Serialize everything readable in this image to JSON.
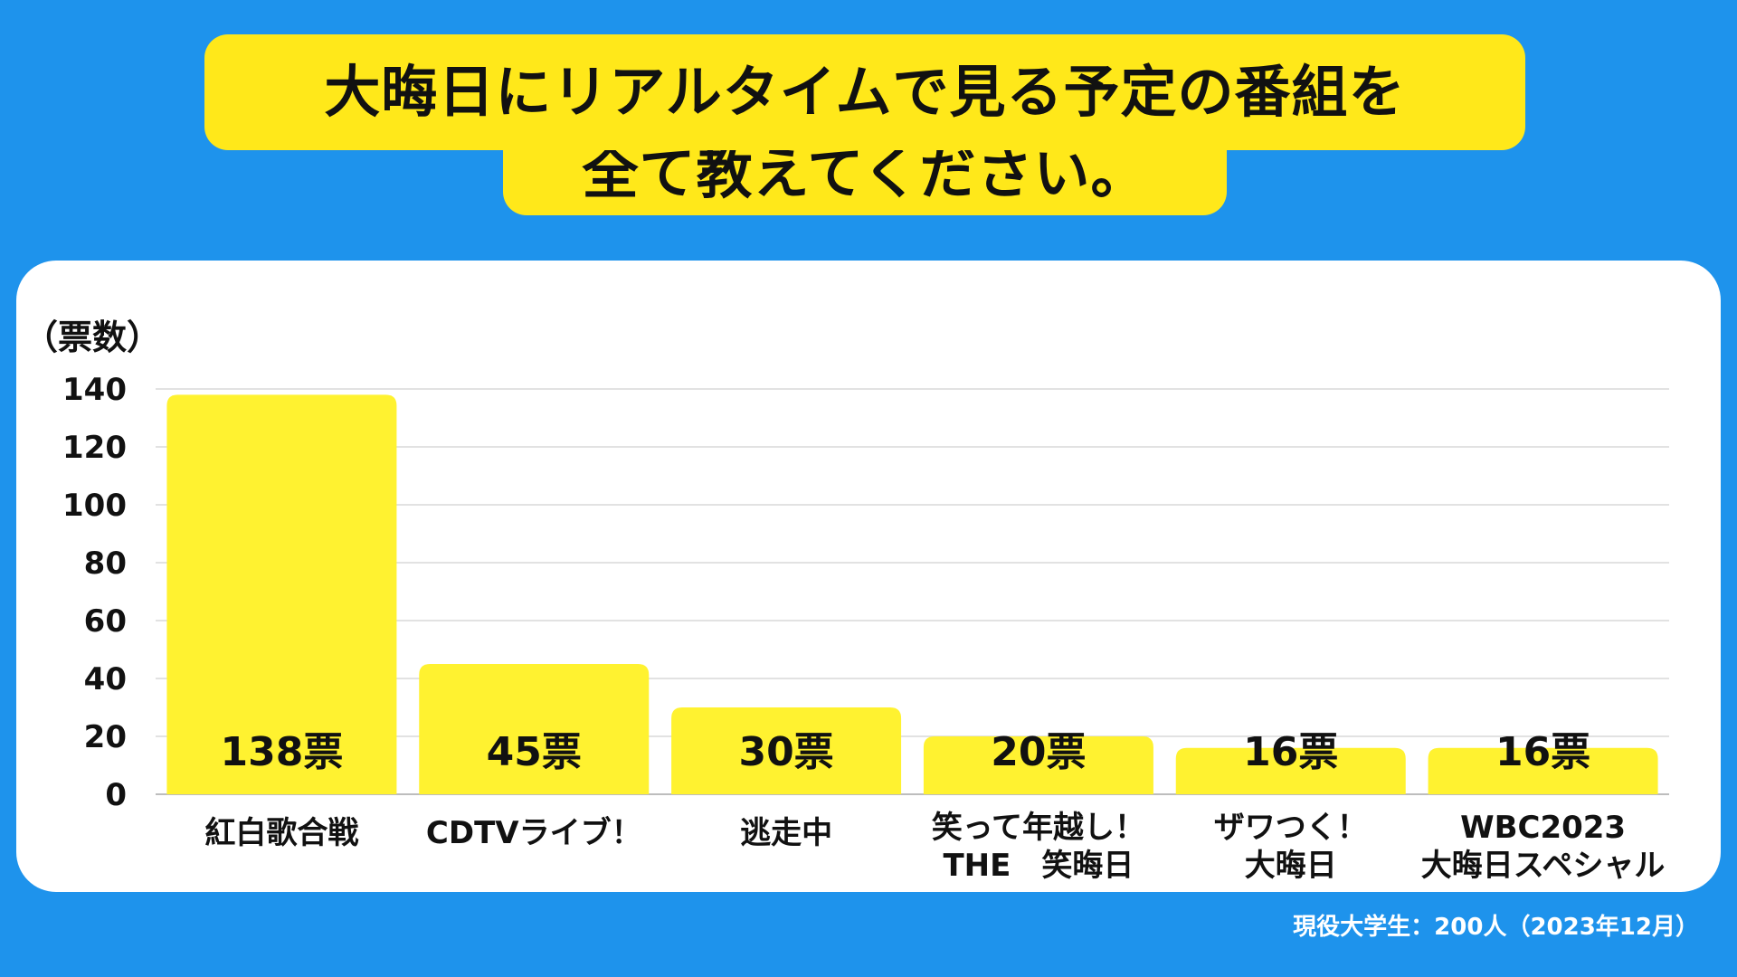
{
  "title": {
    "line1": "大晦日にリアルタイムで見る予定の番組を",
    "line2": "全て教えてください。"
  },
  "source_note": "現役大学生：200人（2023年12月）",
  "colors": {
    "background": "#1e93ec",
    "bar": "#fff230",
    "title_box": "#ffe81a",
    "panel": "#ffffff"
  },
  "chart_data": {
    "type": "bar",
    "ylabel": "（票数）",
    "ylim": [
      0,
      140
    ],
    "yticks": [
      0,
      20,
      40,
      60,
      80,
      100,
      120,
      140
    ],
    "grid": true,
    "categories": [
      [
        "紅白歌合戦"
      ],
      [
        "CDTVライブ！"
      ],
      [
        "逃走中"
      ],
      [
        "笑って年越し！",
        "THE　笑晦日"
      ],
      [
        "ザワつく！",
        "大晦日"
      ],
      [
        "WBC2023",
        "大晦日スペシャル"
      ]
    ],
    "values": [
      138,
      45,
      30,
      20,
      16,
      16
    ],
    "value_labels": [
      "138票",
      "45票",
      "30票",
      "20票",
      "16票",
      "16票"
    ]
  }
}
